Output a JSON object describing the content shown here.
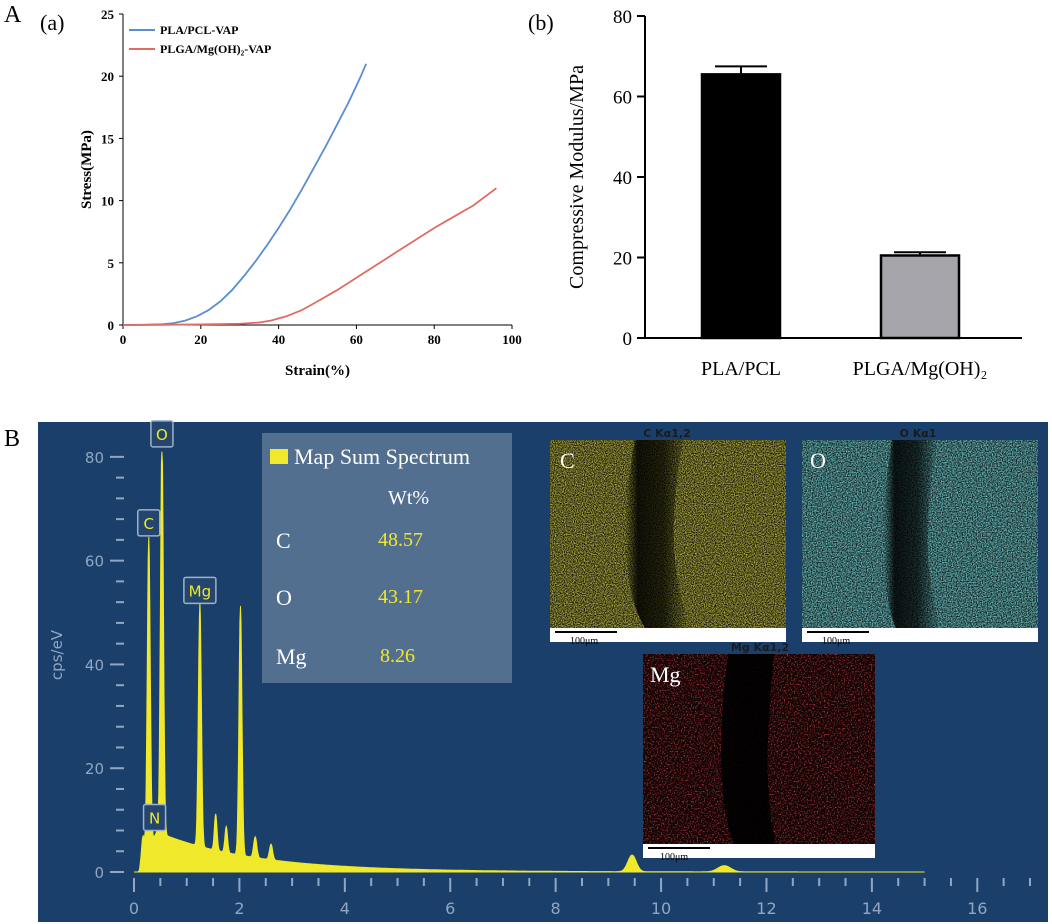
{
  "figure": {
    "panel_a_label": "A",
    "panel_b_label": "B",
    "sub_a_label": "(a)",
    "sub_b_label": "(b)"
  },
  "chart_data": [
    {
      "id": "stress_strain",
      "type": "line",
      "title": "",
      "xlabel": "Strain(%)",
      "ylabel": "Stress(MPa)",
      "xlim": [
        0,
        100
      ],
      "ylim": [
        0,
        25
      ],
      "xticks": [
        0,
        20,
        40,
        60,
        80,
        100
      ],
      "yticks": [
        0,
        5,
        10,
        15,
        20,
        25
      ],
      "series": [
        {
          "name": "PLA/PCL-VAP",
          "color": "#5b8ed0",
          "x": [
            0,
            5,
            10,
            13,
            16,
            19,
            22,
            25,
            28,
            31,
            34,
            37,
            40,
            43,
            46,
            49,
            52,
            55,
            58,
            61,
            62.5
          ],
          "y": [
            0,
            0.02,
            0.06,
            0.15,
            0.35,
            0.7,
            1.2,
            1.9,
            2.8,
            3.9,
            5.1,
            6.4,
            7.8,
            9.3,
            10.9,
            12.6,
            14.3,
            16.1,
            17.9,
            19.9,
            21.0
          ]
        },
        {
          "name": "PLGA/Mg(OH)₂-VAP",
          "color": "#e06b63",
          "x": [
            0,
            10,
            20,
            30,
            35,
            38,
            42,
            46,
            50,
            55,
            60,
            65,
            70,
            75,
            80,
            85,
            90,
            96
          ],
          "y": [
            0,
            0.02,
            0.05,
            0.1,
            0.2,
            0.35,
            0.7,
            1.2,
            1.9,
            2.8,
            3.8,
            4.8,
            5.8,
            6.8,
            7.8,
            8.7,
            9.6,
            11.0
          ]
        }
      ]
    },
    {
      "id": "compressive_modulus",
      "type": "bar",
      "title": "",
      "xlabel": "",
      "ylabel": "Compressive Modulus/MPa",
      "ylim": [
        0,
        80
      ],
      "yticks": [
        0,
        20,
        40,
        60,
        80
      ],
      "categories": [
        "PLA/PCL",
        "PLGA/Mg(OH)₂"
      ],
      "values": [
        65.5,
        20.5
      ],
      "errors": [
        2.0,
        0.8
      ],
      "colors": [
        "#000000",
        "#a6a5ab"
      ]
    },
    {
      "id": "eds_spectrum",
      "type": "line",
      "title": "",
      "xlabel": "",
      "ylabel": "cps/eV",
      "xlim": [
        0,
        17
      ],
      "ylim": [
        0,
        82
      ],
      "xticks": [
        0,
        2,
        4,
        6,
        8,
        10,
        12,
        14,
        16
      ],
      "yticks": [
        0,
        20,
        40,
        60,
        80
      ],
      "peaks": [
        {
          "element": "C",
          "energy": 0.28,
          "height": 64
        },
        {
          "element": "O",
          "energy": 0.53,
          "height": 80
        },
        {
          "element": "Mg",
          "energy": 1.25,
          "height": 51
        },
        {
          "element": "N",
          "energy": 0.39,
          "height": 4
        },
        {
          "element": "",
          "energy": 2.02,
          "height": 52
        },
        {
          "element": "",
          "energy": 9.45,
          "height": 4
        }
      ],
      "legend": {
        "series_name": "Map Sum Spectrum",
        "column_header": "Wt%",
        "rows": [
          {
            "element": "C",
            "value": "48.57"
          },
          {
            "element": "O",
            "value": "43.17"
          },
          {
            "element": "Mg",
            "value": "8.26"
          }
        ]
      }
    }
  ],
  "eds_maps": [
    {
      "title": "C Kα1,2",
      "letter": "C",
      "scale": "100μm",
      "color": "#d9d12a"
    },
    {
      "title": "O Kα1",
      "letter": "O",
      "scale": "100μm",
      "color": "#3fc6c8"
    },
    {
      "title": "Mg Kα1,2",
      "letter": "Mg",
      "scale": "100μm",
      "color": "#e0232a"
    }
  ]
}
